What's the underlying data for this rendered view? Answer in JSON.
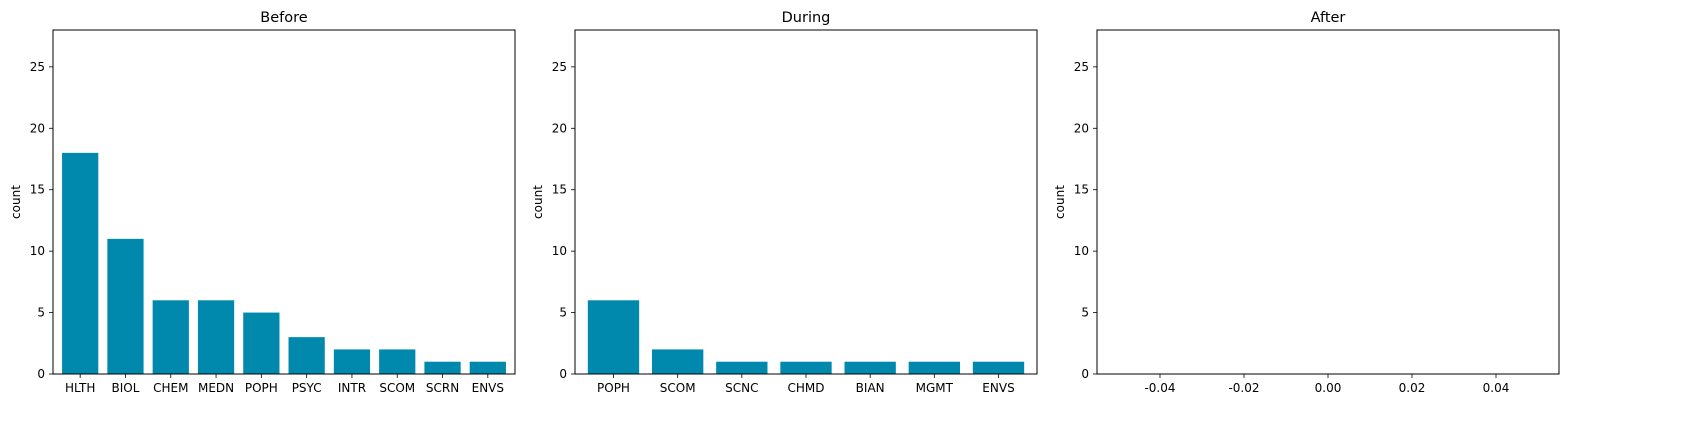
{
  "chart_data": [
    {
      "type": "bar",
      "title": "Before",
      "xlabel": "",
      "ylabel": "count",
      "categories": [
        "HLTH",
        "BIOL",
        "CHEM",
        "MEDN",
        "POPH",
        "PSYC",
        "INTR",
        "SCOM",
        "SCRN",
        "ENVS"
      ],
      "values": [
        18,
        11,
        6,
        6,
        5,
        3,
        2,
        2,
        1,
        1
      ],
      "ylim": [
        0,
        28
      ],
      "yticks": [
        0,
        5,
        10,
        15,
        20,
        25
      ],
      "grid": false,
      "color": "#0088ad"
    },
    {
      "type": "bar",
      "title": "During",
      "xlabel": "",
      "ylabel": "count",
      "categories": [
        "POPH",
        "SCOM",
        "SCNC",
        "CHMD",
        "BIAN",
        "MGMT",
        "ENVS"
      ],
      "values": [
        6,
        2,
        1,
        1,
        1,
        1,
        1
      ],
      "ylim": [
        0,
        28
      ],
      "yticks": [
        0,
        5,
        10,
        15,
        20,
        25
      ],
      "grid": false,
      "color": "#0088ad"
    },
    {
      "type": "bar",
      "title": "After",
      "xlabel": "",
      "ylabel": "count",
      "categories": [],
      "values": [],
      "ylim": [
        0,
        28
      ],
      "xlim": [
        -0.055,
        0.055
      ],
      "yticks": [
        0,
        5,
        10,
        15,
        20,
        25
      ],
      "xticks": [
        "-0.04",
        "-0.02",
        "0.00",
        "0.02",
        "0.04"
      ],
      "grid": false,
      "color": "#0088ad"
    }
  ]
}
